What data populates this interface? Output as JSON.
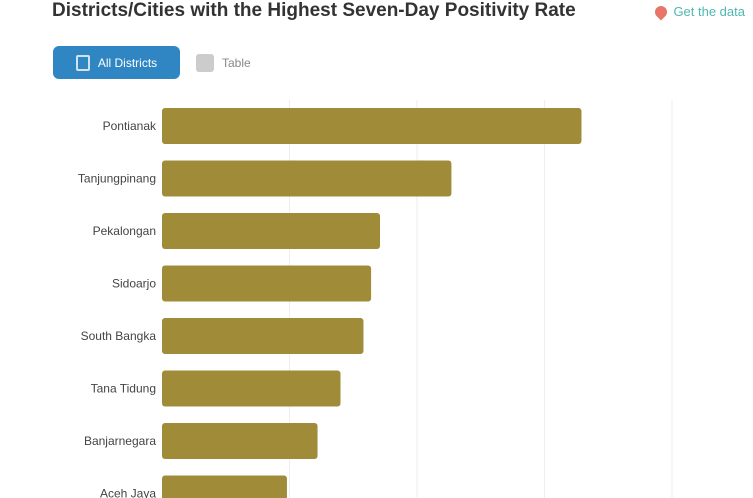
{
  "title": "Districts/Cities with the Highest Seven-Day Positivity Rate",
  "source_label": "Get the data",
  "controls": {
    "all_label": "All Districts",
    "table_label": "Table"
  },
  "colors": {
    "bar": "#a08c38",
    "button": "#2f86c3",
    "link": "#4fb8b0"
  },
  "chart_data": {
    "type": "bar",
    "orientation": "horizontal",
    "title": "Districts/Cities with the Highest Seven-Day Positivity Rate",
    "categories": [
      "Pontianak",
      "Tanjungpinang",
      "Pekalongan",
      "Sidoarjo",
      "South Bangka",
      "Tana Tidung",
      "Banjarnegara",
      "Aceh Jaya"
    ],
    "values": [
      32.9,
      22.7,
      17.1,
      16.4,
      15.8,
      14.0,
      12.2,
      9.8
    ],
    "xlim": [
      0,
      40
    ],
    "grid": true,
    "legend": "none"
  }
}
